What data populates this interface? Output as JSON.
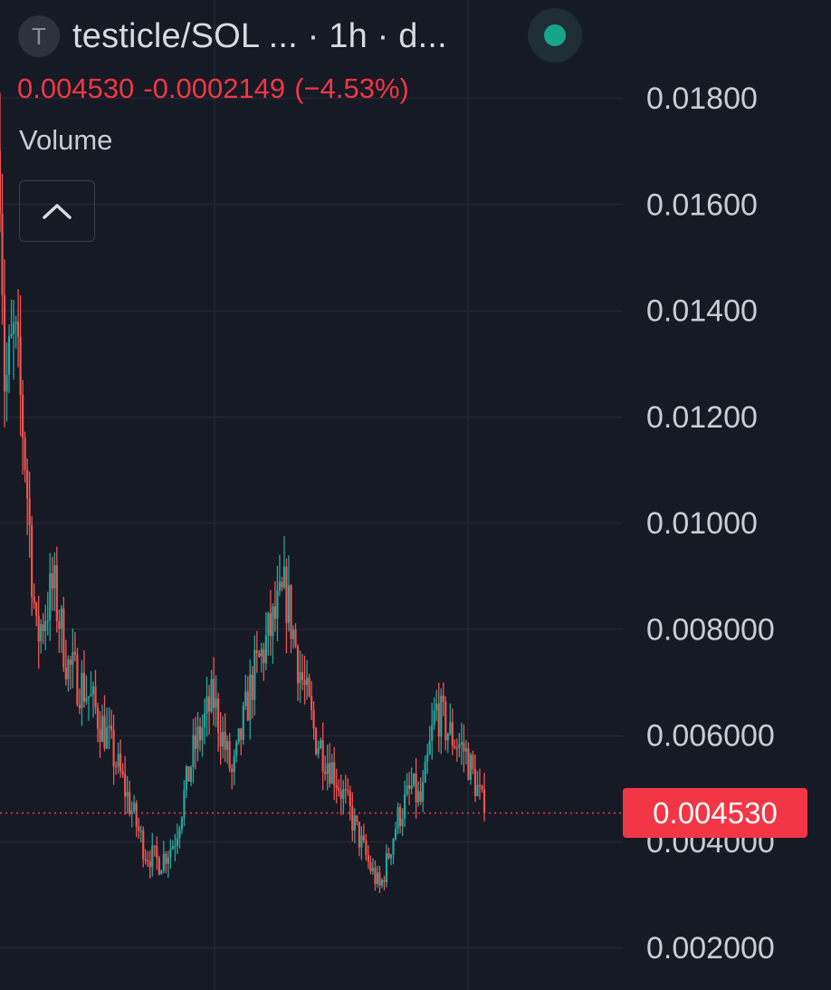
{
  "header": {
    "symbol_initial": "T",
    "pair_title": "testicle/SOL ... · 1h · d...",
    "status_color": "#17a589"
  },
  "legend": {
    "last": "0.004530",
    "change": "-0.0002149",
    "change_pct": "(−4.53%)"
  },
  "volume_label": "Volume",
  "colors": {
    "background": "#161a25",
    "up": "#26a69a",
    "down": "#ef5350",
    "grid": "#232733",
    "axis_text": "#c9ccd3",
    "badge": "#f23645",
    "legend_text": "#f23645"
  },
  "chart_data": {
    "type": "candlestick",
    "timeframe": "1h",
    "ylim": [
      0.0015,
      0.0193
    ],
    "y_ticks": [
      "0.01800",
      "0.01600",
      "0.01400",
      "0.01200",
      "0.01000",
      "0.008000",
      "0.006000",
      "0.004000",
      "0.002000"
    ],
    "y_tick_values": [
      0.018,
      0.016,
      0.014,
      0.012,
      0.01,
      0.008,
      0.006,
      0.004,
      0.002
    ],
    "last_price": 0.00453,
    "last_price_label": "0.004530",
    "path_close": [
      [
        0.0,
        0.017
      ],
      [
        0.01,
        0.0125
      ],
      [
        0.03,
        0.0135
      ],
      [
        0.05,
        0.0115
      ],
      [
        0.075,
        0.0078
      ],
      [
        0.11,
        0.0088
      ],
      [
        0.14,
        0.0073
      ],
      [
        0.18,
        0.0068
      ],
      [
        0.22,
        0.006
      ],
      [
        0.25,
        0.0052
      ],
      [
        0.3,
        0.0038
      ],
      [
        0.33,
        0.0036
      ],
      [
        0.36,
        0.004
      ],
      [
        0.4,
        0.0057
      ],
      [
        0.44,
        0.0067
      ],
      [
        0.48,
        0.0052
      ],
      [
        0.52,
        0.007
      ],
      [
        0.56,
        0.008
      ],
      [
        0.59,
        0.0087
      ],
      [
        0.62,
        0.0072
      ],
      [
        0.65,
        0.006
      ],
      [
        0.69,
        0.0053
      ],
      [
        0.72,
        0.0046
      ],
      [
        0.76,
        0.0036
      ],
      [
        0.785,
        0.0031
      ],
      [
        0.82,
        0.0044
      ],
      [
        0.85,
        0.005
      ],
      [
        0.87,
        0.0047
      ],
      [
        0.9,
        0.0065
      ],
      [
        0.93,
        0.006
      ],
      [
        0.96,
        0.0057
      ],
      [
        0.985,
        0.005
      ],
      [
        1.0,
        0.00453
      ]
    ]
  }
}
